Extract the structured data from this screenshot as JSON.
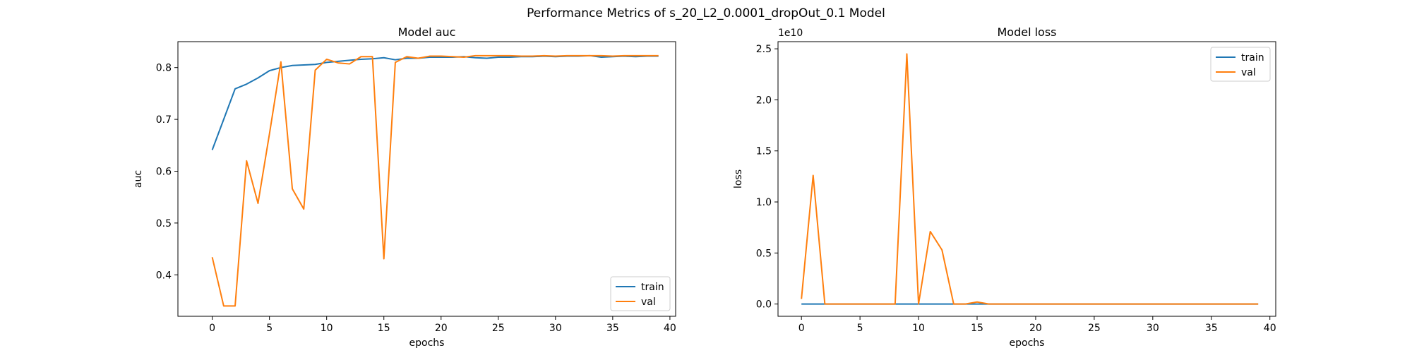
{
  "figure": {
    "suptitle": "Performance Metrics of s_20_L2_0.0001_dropOut_0.1 Model"
  },
  "colors": {
    "train": "#1f77b4",
    "val": "#ff7f0e"
  },
  "chart_data": [
    {
      "type": "line",
      "title": "Model auc",
      "xlabel": "epochs",
      "ylabel": "auc",
      "xlim": [
        -3,
        40.5
      ],
      "ylim": [
        0.32,
        0.85
      ],
      "xticks": [
        0,
        5,
        10,
        15,
        20,
        25,
        30,
        35,
        40
      ],
      "xtick_labels": [
        "0",
        "5",
        "10",
        "15",
        "20",
        "25",
        "30",
        "35",
        "40"
      ],
      "yticks": [
        0.4,
        0.5,
        0.6,
        0.7,
        0.8
      ],
      "ytick_labels": [
        "0.4",
        "0.5",
        "0.6",
        "0.7",
        "0.8"
      ],
      "legend_location": "lower right",
      "grid": false,
      "series": [
        {
          "name": "train",
          "color_key": "train",
          "x": [
            0,
            1,
            2,
            3,
            4,
            5,
            6,
            7,
            8,
            9,
            10,
            11,
            12,
            13,
            14,
            15,
            16,
            17,
            18,
            19,
            20,
            21,
            22,
            23,
            24,
            25,
            26,
            27,
            28,
            29,
            30,
            31,
            32,
            33,
            34,
            35,
            36,
            37,
            38,
            39
          ],
          "values": [
            0.641,
            0.7,
            0.759,
            0.768,
            0.78,
            0.794,
            0.8,
            0.804,
            0.805,
            0.806,
            0.81,
            0.812,
            0.814,
            0.816,
            0.817,
            0.819,
            0.815,
            0.818,
            0.818,
            0.82,
            0.82,
            0.82,
            0.821,
            0.819,
            0.818,
            0.82,
            0.82,
            0.821,
            0.821,
            0.822,
            0.821,
            0.822,
            0.822,
            0.823,
            0.82,
            0.821,
            0.822,
            0.821,
            0.822,
            0.822
          ]
        },
        {
          "name": "val",
          "color_key": "val",
          "x": [
            0,
            1,
            2,
            3,
            4,
            5,
            6,
            7,
            8,
            9,
            10,
            11,
            12,
            13,
            14,
            15,
            16,
            17,
            18,
            19,
            20,
            21,
            22,
            23,
            24,
            25,
            26,
            27,
            28,
            29,
            30,
            31,
            32,
            33,
            34,
            35,
            36,
            37,
            38,
            39
          ],
          "values": [
            0.434,
            0.34,
            0.34,
            0.62,
            0.538,
            0.672,
            0.811,
            0.566,
            0.527,
            0.795,
            0.816,
            0.809,
            0.807,
            0.821,
            0.821,
            0.431,
            0.81,
            0.821,
            0.818,
            0.822,
            0.822,
            0.821,
            0.82,
            0.823,
            0.823,
            0.823,
            0.823,
            0.822,
            0.822,
            0.823,
            0.822,
            0.823,
            0.823,
            0.823,
            0.823,
            0.822,
            0.823,
            0.823,
            0.823,
            0.823
          ]
        }
      ]
    },
    {
      "type": "line",
      "title": "Model loss",
      "xlabel": "epochs",
      "ylabel": "loss",
      "offset_label": "1e10",
      "xlim": [
        -2,
        40.5
      ],
      "ylim": [
        -0.12,
        2.57
      ],
      "xticks": [
        0,
        5,
        10,
        15,
        20,
        25,
        30,
        35,
        40
      ],
      "xtick_labels": [
        "0",
        "5",
        "10",
        "15",
        "20",
        "25",
        "30",
        "35",
        "40"
      ],
      "yticks": [
        0.0,
        0.5,
        1.0,
        1.5,
        2.0,
        2.5
      ],
      "ytick_labels": [
        "0.0",
        "0.5",
        "1.0",
        "1.5",
        "2.0",
        "2.5"
      ],
      "legend_location": "upper right",
      "grid": false,
      "series": [
        {
          "name": "train",
          "color_key": "train",
          "x": [
            0,
            1,
            2,
            3,
            4,
            5,
            6,
            7,
            8,
            9,
            10,
            11,
            12,
            13,
            14,
            15,
            16,
            17,
            18,
            19,
            20,
            21,
            22,
            23,
            24,
            25,
            26,
            27,
            28,
            29,
            30,
            31,
            32,
            33,
            34,
            35,
            36,
            37,
            38,
            39
          ],
          "values": [
            0.0,
            0.0,
            0.0,
            0.0,
            0.0,
            0.0,
            0.0,
            0.0,
            0.0,
            0.0,
            0.0,
            0.0,
            0.0,
            0.0,
            0.0,
            0.0,
            0.0,
            0.0,
            0.0,
            0.0,
            0.0,
            0.0,
            0.0,
            0.0,
            0.0,
            0.0,
            0.0,
            0.0,
            0.0,
            0.0,
            0.0,
            0.0,
            0.0,
            0.0,
            0.0,
            0.0,
            0.0,
            0.0,
            0.0,
            0.0
          ]
        },
        {
          "name": "val",
          "color_key": "val",
          "x": [
            0,
            1,
            2,
            3,
            4,
            5,
            6,
            7,
            8,
            9,
            10,
            11,
            12,
            13,
            14,
            15,
            16,
            17,
            18,
            19,
            20,
            21,
            22,
            23,
            24,
            25,
            26,
            27,
            28,
            29,
            30,
            31,
            32,
            33,
            34,
            35,
            36,
            37,
            38,
            39
          ],
          "values": [
            0.05,
            1.26,
            0.0,
            0.0,
            0.0,
            0.0,
            0.0,
            0.0,
            0.0,
            2.45,
            0.0,
            0.71,
            0.53,
            0.0,
            0.0,
            0.02,
            0.0,
            0.0,
            0.0,
            0.0,
            0.0,
            0.0,
            0.0,
            0.0,
            0.0,
            0.0,
            0.0,
            0.0,
            0.0,
            0.0,
            0.0,
            0.0,
            0.0,
            0.0,
            0.0,
            0.0,
            0.0,
            0.0,
            0.0,
            0.0
          ]
        }
      ]
    }
  ]
}
